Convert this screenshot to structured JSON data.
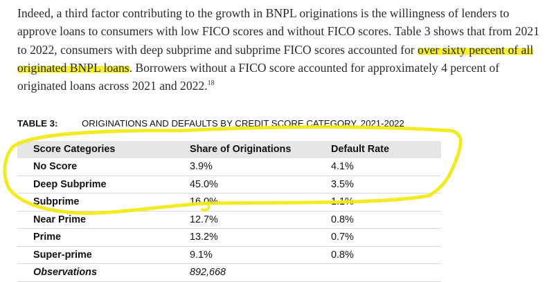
{
  "paragraph": {
    "part1": "Indeed, a third factor contributing to the growth in BNPL originations is the willingness of lenders to approve loans to consumers with low FICO scores and without FICO scores. Table 3 shows that from 2021 to 2022, consumers with deep subprime and subprime FICO scores accounted for ",
    "highlight": "over sixty percent of all originated BNPL loans",
    "part2": ". Borrowers without a FICO score accounted for approximately 4 percent of originated loans across 2021 and 2022.",
    "footnote": "18"
  },
  "table": {
    "number": "TABLE 3:",
    "title": "ORIGINATIONS AND DEFAULTS BY CREDIT SCORE CATEGORY, 2021-2022",
    "headers": [
      "Score Categories",
      "Share of Originations",
      "Default Rate"
    ],
    "rows": [
      {
        "category": "No Score",
        "share": "3.9%",
        "default_rate": "4.1%"
      },
      {
        "category": "Deep Subprime",
        "share": "45.0%",
        "default_rate": "3.5%"
      },
      {
        "category": "Subprime",
        "share": "16.0%",
        "default_rate": "1.1%"
      },
      {
        "category": "Near Prime",
        "share": "12.7%",
        "default_rate": "0.8%"
      },
      {
        "category": "Prime",
        "share": "13.2%",
        "default_rate": "0.7%"
      },
      {
        "category": "Super-prime",
        "share": "9.1%",
        "default_rate": "0.8%"
      }
    ],
    "observations_label": "Observations",
    "observations_value": "892,668"
  },
  "annotation": {
    "highlight_color": "#f4ee2b",
    "marker_color": "#f2ea16"
  }
}
